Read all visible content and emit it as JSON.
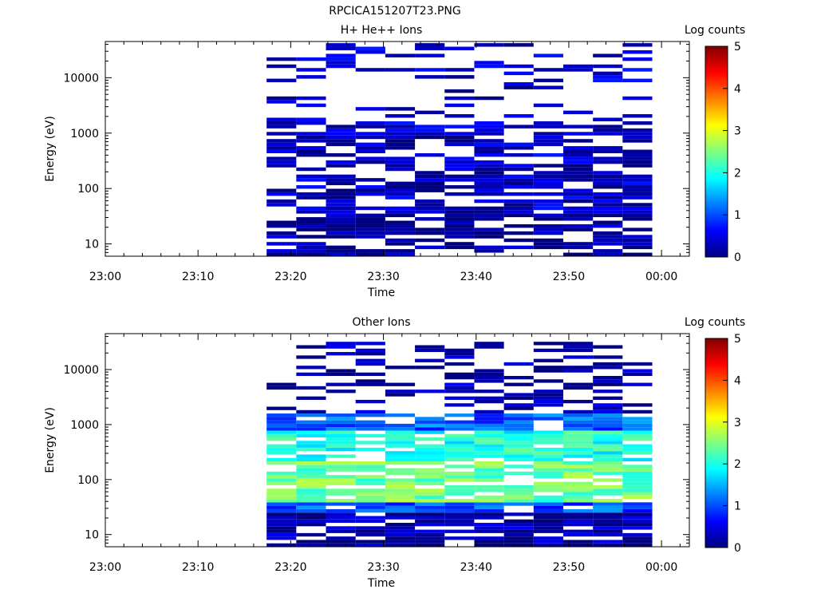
{
  "figure": {
    "title": "RPCICA151207T23.PNG"
  },
  "colorscale": {
    "stops": [
      "#00007f",
      "#0000ff",
      "#007fff",
      "#00ffff",
      "#7fff7f",
      "#ffff00",
      "#ff7f00",
      "#ff0000",
      "#7f0000"
    ]
  },
  "chart_data": [
    {
      "type": "heatmap",
      "title": "H+ He++ Ions",
      "xlabel": "Time",
      "ylabel": "Energy (eV)",
      "yscale": "log",
      "ylim": [
        6,
        45000
      ],
      "xlim_min": [
        0,
        63
      ],
      "x_tick_labels": [
        "23:00",
        "23:10",
        "23:20",
        "23:30",
        "23:40",
        "23:50",
        "00:00"
      ],
      "x_tick_min": [
        0,
        10,
        20,
        30,
        40,
        50,
        60
      ],
      "y_tick_labels": [
        "10",
        "100",
        "1000",
        "10000"
      ],
      "y_tick_values": [
        10,
        100,
        1000,
        10000
      ],
      "colorbar": {
        "label": "Log counts",
        "range": [
          0,
          5
        ],
        "ticks": [
          "0",
          "1",
          "2",
          "3",
          "4",
          "5"
        ]
      },
      "time_columns_min": [
        17.4,
        20.6,
        23.8,
        27.0,
        30.2,
        33.4,
        36.6,
        39.8,
        43.0,
        46.2,
        49.4,
        52.6,
        55.8
      ],
      "energy_range_eV": [
        6,
        42000
      ],
      "energy_bins": 60,
      "level_profile": [
        {
          "e_min": 6,
          "e_max": 40,
          "log_counts": 0.15
        },
        {
          "e_min": 40,
          "e_max": 42000,
          "log_counts": 0.35
        }
      ],
      "fill_fraction": 0.62,
      "seed": 7
    },
    {
      "type": "heatmap",
      "title": "Other Ions",
      "xlabel": "Time",
      "ylabel": "Energy (eV)",
      "yscale": "log",
      "ylim": [
        6,
        45000
      ],
      "xlim_min": [
        0,
        63
      ],
      "x_tick_labels": [
        "23:00",
        "23:10",
        "23:20",
        "23:30",
        "23:40",
        "23:50",
        "00:00"
      ],
      "x_tick_min": [
        0,
        10,
        20,
        30,
        40,
        50,
        60
      ],
      "y_tick_labels": [
        "10",
        "100",
        "1000",
        "10000"
      ],
      "y_tick_values": [
        10,
        100,
        1000,
        10000
      ],
      "colorbar": {
        "label": "Log counts",
        "range": [
          0,
          5
        ],
        "ticks": [
          "0",
          "1",
          "2",
          "3",
          "4",
          "5"
        ]
      },
      "time_columns_min": [
        17.4,
        20.6,
        23.8,
        27.0,
        30.2,
        33.4,
        36.6,
        39.8,
        43.0,
        46.2,
        49.4,
        52.6,
        55.8
      ],
      "energy_range_eV": [
        6,
        32000
      ],
      "energy_bins": 60,
      "level_profile": [
        {
          "e_min": 6,
          "e_max": 25,
          "log_counts": 0.2
        },
        {
          "e_min": 25,
          "e_max": 40,
          "log_counts": 1.0
        },
        {
          "e_min": 40,
          "e_max": 200,
          "log_counts": 2.4
        },
        {
          "e_min": 200,
          "e_max": 800,
          "log_counts": 2.0
        },
        {
          "e_min": 800,
          "e_max": 1700,
          "log_counts": 1.1
        },
        {
          "e_min": 1700,
          "e_max": 32000,
          "log_counts": 0.2
        }
      ],
      "fill_fraction": 0.8,
      "seed": 19
    }
  ]
}
